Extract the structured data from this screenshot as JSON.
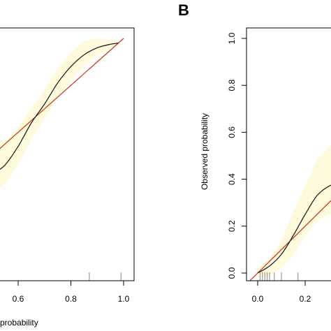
{
  "chart_data": [
    {
      "panel": "",
      "type": "line",
      "xlabel": "probability",
      "ylabel": "",
      "xlim": [
        0.5,
        1.0
      ],
      "ylim": [
        0.0,
        1.0
      ],
      "x_ticks": [
        "0.6",
        "0.8",
        "1.0"
      ],
      "y_ticks": [],
      "grid": false,
      "series": [
        {
          "role": "reference",
          "color": "#cc3311",
          "x": [
            0.5,
            1.0
          ],
          "y": [
            0.5,
            1.0
          ]
        },
        {
          "role": "calibration",
          "color": "#222222",
          "x": [
            0.5,
            0.55,
            0.6,
            0.65,
            0.7,
            0.75,
            0.8,
            0.85,
            0.9,
            0.95,
            0.98
          ],
          "y": [
            0.42,
            0.46,
            0.54,
            0.64,
            0.72,
            0.81,
            0.88,
            0.93,
            0.96,
            0.975,
            0.98
          ]
        }
      ],
      "band": {
        "color": "#fdfbdc",
        "x": [
          0.5,
          0.55,
          0.6,
          0.65,
          0.7,
          0.75,
          0.8,
          0.85,
          0.9,
          0.95,
          0.98
        ],
        "lower": [
          0.32,
          0.38,
          0.46,
          0.57,
          0.66,
          0.75,
          0.82,
          0.88,
          0.93,
          0.96,
          0.97
        ],
        "upper": [
          0.58,
          0.56,
          0.62,
          0.7,
          0.78,
          0.87,
          0.94,
          0.99,
          1.0,
          0.995,
          0.99
        ]
      },
      "rug": [
        0.87,
        0.99
      ]
    },
    {
      "panel": "B",
      "type": "line",
      "xlabel": "",
      "ylabel": "Observed probability",
      "xlim": [
        -0.05,
        0.43
      ],
      "ylim": [
        0.0,
        1.0
      ],
      "x_ticks": [
        "0.0",
        "0.2"
      ],
      "y_ticks": [
        "0.0",
        "0.2",
        "0.4",
        "0.6",
        "0.8",
        "1.0"
      ],
      "grid": false,
      "series": [
        {
          "role": "reference",
          "color": "#cc3311",
          "x": [
            -0.05,
            0.43
          ],
          "y": [
            -0.05,
            0.43
          ]
        },
        {
          "role": "calibration",
          "color": "#222222",
          "x": [
            0.0,
            0.05,
            0.1,
            0.15,
            0.2,
            0.25,
            0.3,
            0.35,
            0.4,
            0.43
          ],
          "y": [
            0.0,
            0.03,
            0.08,
            0.16,
            0.25,
            0.33,
            0.37,
            0.39,
            0.4,
            0.4
          ]
        }
      ],
      "band": {
        "color": "#fdfbdc",
        "x": [
          0.0,
          0.05,
          0.1,
          0.15,
          0.2,
          0.25,
          0.3,
          0.35,
          0.4,
          0.43
        ],
        "lower": [
          -0.02,
          -0.01,
          0.02,
          0.08,
          0.16,
          0.22,
          0.25,
          0.26,
          0.26,
          0.26
        ],
        "upper": [
          0.02,
          0.06,
          0.14,
          0.26,
          0.37,
          0.48,
          0.54,
          0.56,
          0.57,
          0.57
        ]
      },
      "rug": [
        0.01,
        0.02,
        0.03,
        0.04,
        0.05,
        0.07,
        0.1,
        0.17
      ]
    }
  ]
}
